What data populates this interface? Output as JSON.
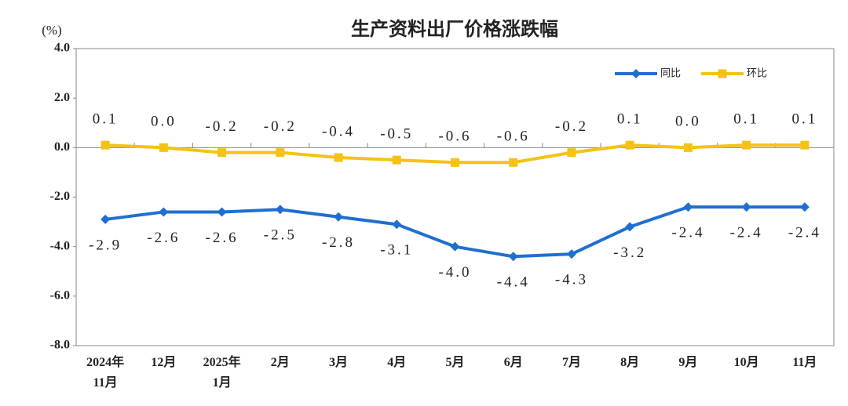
{
  "chart_data": {
    "type": "line",
    "title": "生产资料出厂价格涨跌幅",
    "y_label": "(%)",
    "categories": [
      "2024年\n11月",
      "12月",
      "2025年\n1月",
      "2月",
      "3月",
      "4月",
      "5月",
      "6月",
      "7月",
      "8月",
      "9月",
      "10月",
      "11月"
    ],
    "series": [
      {
        "name": "同比",
        "color": "#1f6fd1",
        "marker": "diamond",
        "values": [
          -2.9,
          -2.6,
          -2.6,
          -2.5,
          -2.8,
          -3.1,
          -4.0,
          -4.4,
          -4.3,
          -3.2,
          -2.4,
          -2.4,
          -2.4
        ],
        "value_labels": [
          "-2.9",
          "-2.6",
          "-2.6",
          "-2.5",
          "-2.8",
          "-3.1",
          "-4.0",
          "-4.4",
          "-4.3",
          "-3.2",
          "-2.4",
          "-2.4",
          "-2.4"
        ],
        "label_position": "below"
      },
      {
        "name": "环比",
        "color": "#f5c214",
        "marker": "square",
        "values": [
          0.1,
          0.0,
          -0.2,
          -0.2,
          -0.4,
          -0.5,
          -0.6,
          -0.6,
          -0.2,
          0.1,
          0.0,
          0.1,
          0.1
        ],
        "value_labels": [
          "0.1",
          "0.0",
          "-0.2",
          "-0.2",
          "-0.4",
          "-0.5",
          "-0.6",
          "-0.6",
          "-0.2",
          "0.1",
          "0.0",
          "0.1",
          "0.1"
        ],
        "label_position": "above"
      }
    ],
    "ylim": [
      -8,
      4
    ],
    "yticks": [
      {
        "value": 4,
        "label": "4.0"
      },
      {
        "value": 2,
        "label": "2.0"
      },
      {
        "value": 0,
        "label": "0.0"
      },
      {
        "value": -2,
        "label": "-2.0"
      },
      {
        "value": -4,
        "label": "-4.0"
      },
      {
        "value": -6,
        "label": "-6.0"
      },
      {
        "value": -8,
        "label": "-8.0"
      }
    ],
    "grid": false,
    "legend": "top-right"
  }
}
